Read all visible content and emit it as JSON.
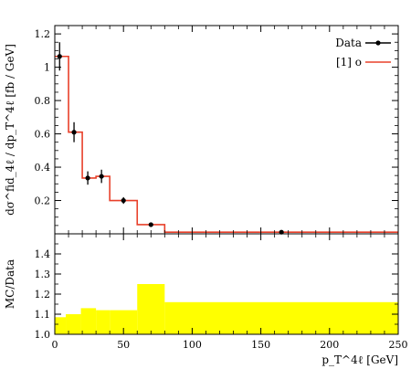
{
  "chart_data": [
    {
      "type": "line",
      "panel": "main",
      "ylabel": "dσ^fid_4ℓ / dp_T^4ℓ [fb / GeV]",
      "xlim": [
        0,
        250
      ],
      "ylim": [
        0,
        1.25
      ],
      "yticks": [
        0.2,
        0.4,
        0.6,
        0.8,
        1.0,
        1.2
      ],
      "ytick_labels": [
        "0.2",
        "0.4",
        "0.6",
        "0.8",
        "1",
        "1.2"
      ],
      "legend": {
        "placement": "top-right",
        "entries": [
          "Data",
          "[1] o"
        ]
      },
      "data_points": [
        {
          "x": 3.5,
          "y": 1.065,
          "yerr": 0.085,
          "xerr": 0
        },
        {
          "x": 14,
          "y": 0.61,
          "yerr": 0.06,
          "xerr": 0
        },
        {
          "x": 24,
          "y": 0.335,
          "yerr": 0.04,
          "xerr": 0
        },
        {
          "x": 34,
          "y": 0.345,
          "yerr": 0.04,
          "xerr": 0
        },
        {
          "x": 50,
          "y": 0.2,
          "yerr": 0.02,
          "xerr": 0
        },
        {
          "x": 70,
          "y": 0.055,
          "yerr": 0.005,
          "xerr": 0
        },
        {
          "x": 165,
          "y": 0.01,
          "yerr": 0.003,
          "xerr": 0
        }
      ],
      "mc_histogram": {
        "edges": [
          0,
          10,
          20,
          30,
          40,
          60,
          80,
          250
        ],
        "values": [
          1.065,
          0.61,
          0.335,
          0.345,
          0.2,
          0.055,
          0.01
        ],
        "color": "#e8402a"
      },
      "colors": {
        "data": "#000000",
        "mc": "#e8402a"
      }
    },
    {
      "type": "area",
      "panel": "ratio",
      "xlabel": "p_T^4ℓ [GeV]",
      "ylabel": "MC/Data",
      "xlim": [
        0,
        250
      ],
      "ylim": [
        1.0,
        1.5
      ],
      "xticks": [
        0,
        50,
        100,
        150,
        200,
        250
      ],
      "xtick_labels": [
        "0",
        "50",
        "100",
        "150",
        "200",
        "250"
      ],
      "yticks": [
        1.0,
        1.1,
        1.2,
        1.3,
        1.4
      ],
      "ytick_labels": [
        "1.0",
        "1.1",
        "1.2",
        "1.3",
        "1.4"
      ],
      "band": {
        "edges": [
          0,
          8,
          19,
          30,
          40,
          60,
          80,
          250
        ],
        "upper": [
          1.085,
          1.1,
          1.13,
          1.12,
          1.12,
          1.25,
          1.16
        ],
        "lower": [
          1.0,
          1.0,
          1.0,
          1.0,
          1.0,
          1.0,
          1.0
        ],
        "color": "#ffff00"
      }
    }
  ]
}
